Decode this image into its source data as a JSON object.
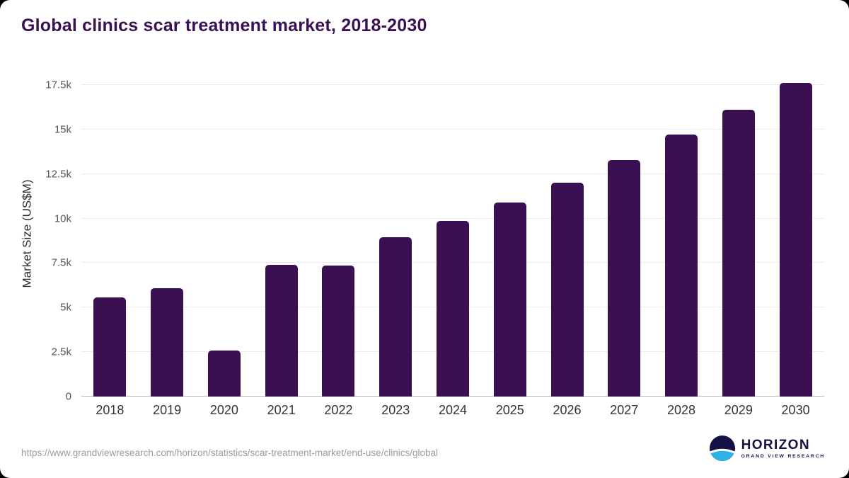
{
  "title": "Global clinics scar treatment market, 2018-2030",
  "source_url": "https://www.grandviewresearch.com/horizon/statistics/scar-treatment-market/end-use/clinics/global",
  "logo": {
    "name": "HORIZON",
    "subtitle": "GRAND VIEW RESEARCH"
  },
  "colors": {
    "bar": "#3b1053",
    "title": "#3b1053",
    "grid": "#ececec",
    "axis": "#b7b7b7",
    "tick_text": "#555555",
    "logo_navy": "#141245",
    "logo_blue": "#2bb3e8"
  },
  "chart_data": {
    "type": "bar",
    "title": "Global clinics scar treatment market, 2018-2030",
    "categories": [
      "2018",
      "2019",
      "2020",
      "2021",
      "2022",
      "2023",
      "2024",
      "2025",
      "2026",
      "2027",
      "2028",
      "2029",
      "2030"
    ],
    "values": [
      5550,
      6100,
      2600,
      7400,
      7350,
      8950,
      9850,
      10900,
      12000,
      13300,
      14700,
      16100,
      17600
    ],
    "xlabel": "",
    "ylabel": "Market Size (US$M)",
    "ylim": [
      0,
      18000
    ],
    "yticks": [
      {
        "label": "0",
        "value": 0
      },
      {
        "label": "2.5k",
        "value": 2500
      },
      {
        "label": "5k",
        "value": 5000
      },
      {
        "label": "7.5k",
        "value": 7500
      },
      {
        "label": "10k",
        "value": 10000
      },
      {
        "label": "12.5k",
        "value": 12500
      },
      {
        "label": "15k",
        "value": 15000
      },
      {
        "label": "17.5k",
        "value": 17500
      }
    ],
    "grid": true,
    "legend": false
  }
}
